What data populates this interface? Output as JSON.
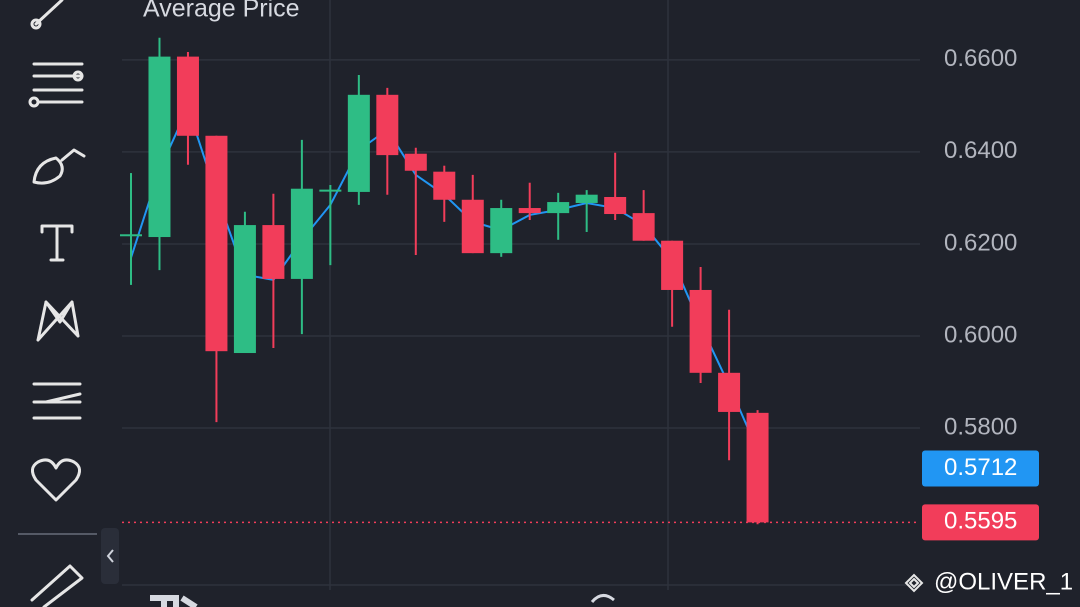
{
  "chart_data": {
    "type": "candlestick",
    "ylim": [
      0.5459,
      0.673
    ],
    "yticks": [
      {
        "value": 0.66,
        "label": "0.6600"
      },
      {
        "value": 0.64,
        "label": "0.6400"
      },
      {
        "value": 0.62,
        "label": "0.6200"
      },
      {
        "value": 0.6,
        "label": "0.6000"
      },
      {
        "value": 0.58,
        "label": "0.5800"
      }
    ],
    "grid": true,
    "up_color": "#2ebd85",
    "down_color": "#f23d5a",
    "open": [
      0.622,
      0.6215,
      0.6607,
      0.6435,
      0.5963,
      0.6241,
      0.6124,
      0.6317,
      0.6313,
      0.6524,
      0.6396,
      0.6357,
      0.6296,
      0.618,
      0.6278,
      0.6267,
      0.6289,
      0.6302,
      0.6267,
      0.6207,
      0.61,
      0.592,
      0.5833
    ],
    "high": [
      0.6354,
      0.6648,
      0.6617,
      0.6435,
      0.627,
      0.6309,
      0.6426,
      0.6328,
      0.6567,
      0.6539,
      0.6409,
      0.637,
      0.635,
      0.6296,
      0.6333,
      0.6311,
      0.6317,
      0.6398,
      0.6317,
      0.6207,
      0.615,
      0.6057,
      0.5839
    ],
    "low": [
      0.6111,
      0.6143,
      0.6372,
      0.5813,
      0.5963,
      0.5974,
      0.6004,
      0.6154,
      0.6285,
      0.6307,
      0.6176,
      0.6248,
      0.618,
      0.6172,
      0.6252,
      0.6209,
      0.6226,
      0.6252,
      0.6207,
      0.602,
      0.5898,
      0.573,
      0.5591
    ],
    "close": [
      0.6221,
      0.6607,
      0.6435,
      0.5967,
      0.6241,
      0.6124,
      0.632,
      0.6318,
      0.6524,
      0.6393,
      0.6359,
      0.6296,
      0.618,
      0.6278,
      0.6267,
      0.6291,
      0.6307,
      0.6265,
      0.6207,
      0.61,
      0.592,
      0.5835,
      0.5595
    ],
    "series": [
      {
        "name": "Average Price",
        "color": "#2196f3",
        "values": [
          0.617,
          0.6361,
          0.6496,
          0.6307,
          0.6133,
          0.6122,
          0.6209,
          0.6285,
          0.6404,
          0.6448,
          0.635,
          0.6307,
          0.6248,
          0.623,
          0.6263,
          0.6274,
          0.6289,
          0.6278,
          0.6241,
          0.6165,
          0.6024,
          0.5893,
          0.5752
        ]
      }
    ],
    "price_markers": [
      {
        "value": 0.5712,
        "color": "#2196f3",
        "line": false
      },
      {
        "value": 0.5595,
        "color": "#f23d5a",
        "line": true
      }
    ],
    "watermark": "@OLIVER_1"
  }
}
